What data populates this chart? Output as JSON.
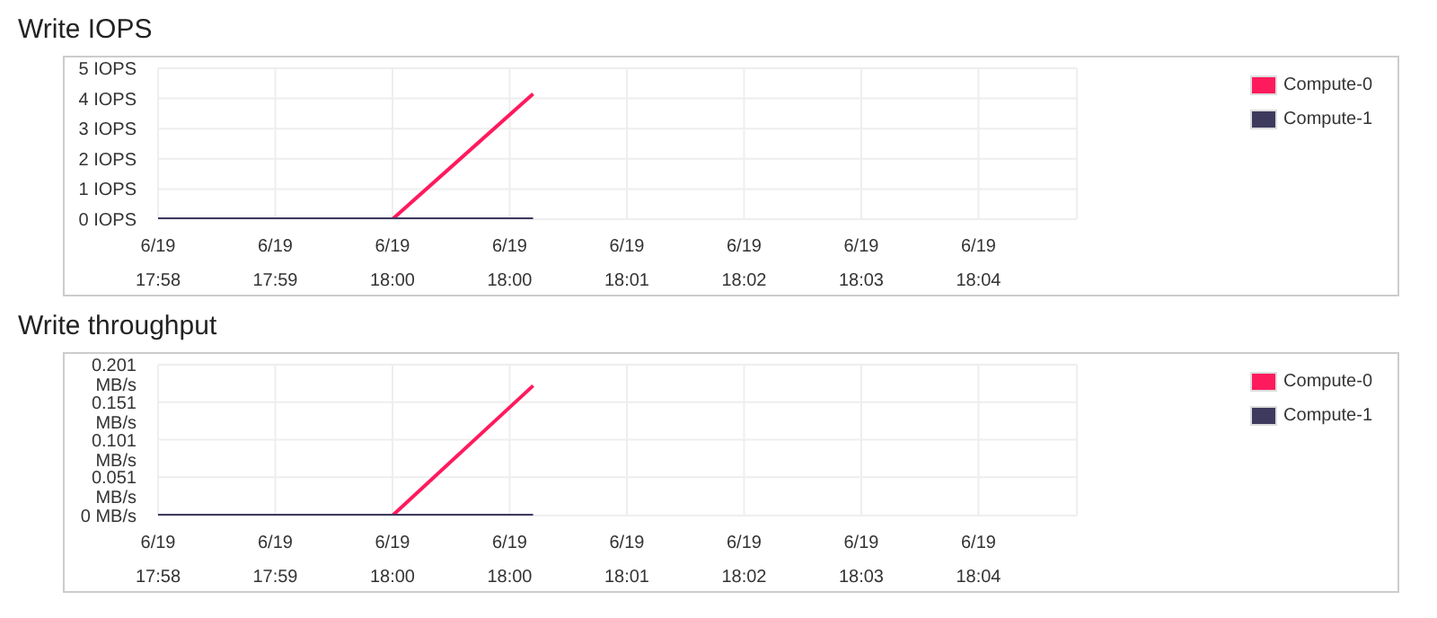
{
  "chart_data": [
    {
      "type": "line",
      "title": "Write IOPS",
      "xlim": [
        "--06-19T17:58:20",
        "--06-19T18:04:52"
      ],
      "xticks": [
        {
          "value": "--06-19T17:58:20",
          "label": "6/19\n17:58"
        },
        {
          "value": "--06-19T17:59:10",
          "label": "6/19\n17:59"
        },
        {
          "value": "--06-19T18:00:00",
          "label": "6/19\n18:00"
        },
        {
          "value": "--06-19T18:00:50",
          "label": "6/19\n18:00"
        },
        {
          "value": "--06-19T18:01:40",
          "label": "6/19\n18:01"
        },
        {
          "value": "--06-19T18:02:30",
          "label": "6/19\n18:02"
        },
        {
          "value": "--06-19T18:03:20",
          "label": "6/19\n18:03"
        },
        {
          "value": "--06-19T18:04:10",
          "label": "6/19\n18:04"
        }
      ],
      "ylim": [
        0,
        5
      ],
      "yticks": [
        {
          "value": 0,
          "label": "0 IOPS"
        },
        {
          "value": 1,
          "label": "1 IOPS"
        },
        {
          "value": 2,
          "label": "2 IOPS"
        },
        {
          "value": 3,
          "label": "3 IOPS"
        },
        {
          "value": 4,
          "label": "4 IOPS"
        },
        {
          "value": 5,
          "label": "5 IOPS"
        }
      ],
      "grid": true,
      "legend": "top right",
      "marker": "none",
      "series": [
        {
          "name": "Compute-0",
          "color": "#ff1a5e",
          "x": [
            "--06-19T18:00:00",
            "--06-19T18:01:00"
          ],
          "values": [
            0,
            4.15
          ]
        },
        {
          "name": "Compute-1",
          "color": "#3d3a5e",
          "x": [
            "--06-19T17:58:20",
            "--06-19T18:00:00",
            "--06-19T18:01:00"
          ],
          "values": [
            0,
            0,
            0
          ]
        }
      ]
    },
    {
      "type": "line",
      "title": "Write throughput",
      "xlim": [
        "--06-19T17:58:20",
        "--06-19T18:04:52"
      ],
      "xticks": [
        {
          "value": "--06-19T17:58:20",
          "label": "6/19\n17:58"
        },
        {
          "value": "--06-19T17:59:10",
          "label": "6/19\n17:59"
        },
        {
          "value": "--06-19T18:00:00",
          "label": "6/19\n18:00"
        },
        {
          "value": "--06-19T18:00:50",
          "label": "6/19\n18:00"
        },
        {
          "value": "--06-19T18:01:40",
          "label": "6/19\n18:01"
        },
        {
          "value": "--06-19T18:02:30",
          "label": "6/19\n18:02"
        },
        {
          "value": "--06-19T18:03:20",
          "label": "6/19\n18:03"
        },
        {
          "value": "--06-19T18:04:10",
          "label": "6/19\n18:04"
        }
      ],
      "ylim": [
        0,
        0.201
      ],
      "yticks": [
        {
          "value": 0,
          "label": "0 MB/s"
        },
        {
          "value": 0.051,
          "label": "0.051 MB/s"
        },
        {
          "value": 0.101,
          "label": "0.101 MB/s"
        },
        {
          "value": 0.151,
          "label": "0.151 MB/s"
        },
        {
          "value": 0.201,
          "label": "0.201 MB/s"
        }
      ],
      "grid": true,
      "legend": "top right",
      "marker": "none",
      "series": [
        {
          "name": "Compute-0",
          "color": "#ff1a5e",
          "x": [
            "--06-19T18:00:00",
            "--06-19T18:01:00"
          ],
          "values": [
            0,
            0.173
          ]
        },
        {
          "name": "Compute-1",
          "color": "#3d3a5e",
          "x": [
            "--06-19T17:58:20",
            "--06-19T18:00:00",
            "--06-19T18:01:00"
          ],
          "values": [
            0,
            0,
            0
          ]
        }
      ]
    }
  ]
}
